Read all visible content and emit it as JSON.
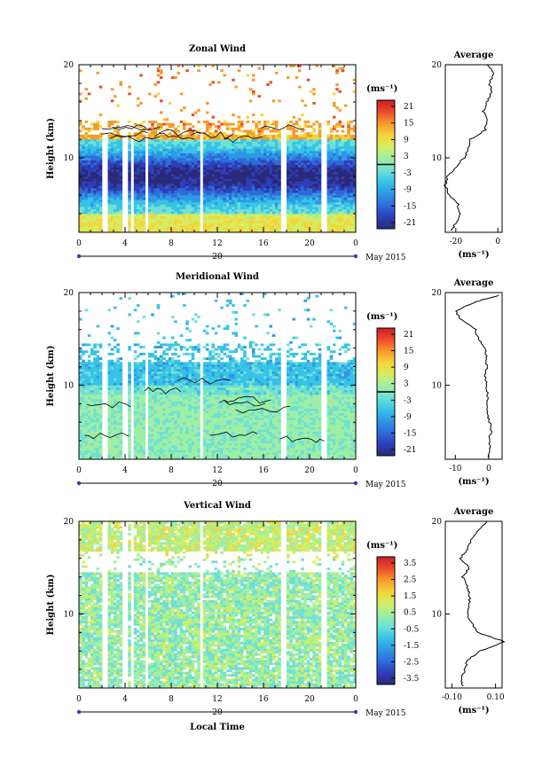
{
  "panels": [
    {
      "title": "Zonal Wind",
      "ylabel": "Height (km)",
      "y_ticks": [
        "20",
        "10"
      ],
      "x_ticks": [
        "0",
        "4",
        "8",
        "12",
        "16",
        "20",
        "0"
      ],
      "date_label": "20",
      "month_label": "May 2015",
      "cb_unit": "(ms⁻¹)",
      "cb_ticks": [
        "21",
        "15",
        "9",
        "3",
        "-3",
        "-9",
        "-15",
        "-21"
      ],
      "avg_title": "Average",
      "avg_y_ticks": [
        "20",
        "10"
      ],
      "avg_x_ticks": [
        "-20",
        "0"
      ],
      "avg_unit": "(ms⁻¹)"
    },
    {
      "title": "Meridional Wind",
      "ylabel": "Height (km)",
      "y_ticks": [
        "20",
        "10"
      ],
      "x_ticks": [
        "0",
        "4",
        "8",
        "12",
        "16",
        "20",
        "0"
      ],
      "date_label": "20",
      "month_label": "May 2015",
      "cb_unit": "(ms⁻¹)",
      "cb_ticks": [
        "21",
        "15",
        "9",
        "3",
        "-3",
        "-9",
        "-15",
        "-21"
      ],
      "avg_title": "Average",
      "avg_y_ticks": [
        "20",
        "10"
      ],
      "avg_x_ticks": [
        "-10",
        "0"
      ],
      "avg_unit": "(ms⁻¹)"
    },
    {
      "title": "Vertical Wind",
      "ylabel": "Height (km)",
      "y_ticks": [
        "20",
        "10"
      ],
      "x_ticks": [
        "0",
        "4",
        "8",
        "12",
        "16",
        "20",
        "0"
      ],
      "date_label": "20",
      "month_label": "May 2015",
      "cb_unit": "(ms⁻¹)",
      "cb_ticks": [
        "3.5",
        "2.5",
        "1.5",
        "0.5",
        "-0.5",
        "-1.5",
        "-2.5",
        "-3.5"
      ],
      "avg_title": "Average",
      "avg_y_ticks": [
        "20",
        "10"
      ],
      "avg_x_ticks": [
        "-0.10",
        "0.10"
      ],
      "avg_unit": "(ms⁻¹)"
    }
  ],
  "xlabel": "Local Time",
  "colorscale": [
    "#2b2a7a",
    "#2c3fb8",
    "#2f6bd9",
    "#2e98e6",
    "#37c3e8",
    "#6fe0d4",
    "#9eeea4",
    "#d2ee63",
    "#f6d438",
    "#f79a2c",
    "#ee4b2b",
    "#c81d27"
  ],
  "chart_data": [
    {
      "type": "heatmap",
      "title": "Zonal Wind",
      "xlabel": "",
      "ylabel": "Height (km)",
      "xlim": [
        0,
        24
      ],
      "ylim": [
        2,
        20
      ],
      "colorbar_range": [
        -24,
        24
      ],
      "colorbar_unit": "(ms⁻¹)",
      "zero_contour": true,
      "data_gaps_hours": [
        [
          2.0,
          2.4
        ],
        [
          3.8,
          4.2
        ],
        [
          4.5,
          4.8
        ],
        [
          5.7,
          6.0
        ],
        [
          10.5,
          10.8
        ],
        [
          17.5,
          17.9
        ],
        [
          21.0,
          21.6
        ]
      ],
      "profile": [
        {
          "height": 2.2,
          "value": -22
        },
        {
          "height": 3,
          "value": -20
        },
        {
          "height": 4,
          "value": -18
        },
        {
          "height": 5,
          "value": -19
        },
        {
          "height": 6,
          "value": -23
        },
        {
          "height": 7,
          "value": -25
        },
        {
          "height": 8,
          "value": -24
        },
        {
          "height": 9,
          "value": -20
        },
        {
          "height": 10,
          "value": -16
        },
        {
          "height": 11,
          "value": -14
        },
        {
          "height": 12,
          "value": -13
        },
        {
          "height": 13,
          "value": -6
        },
        {
          "height": 14,
          "value": -5
        },
        {
          "height": 15,
          "value": -7
        },
        {
          "height": 16,
          "value": -5
        },
        {
          "height": 17,
          "value": -3
        },
        {
          "height": 18,
          "value": -4
        },
        {
          "height": 19,
          "value": -2
        },
        {
          "height": 20,
          "value": -5
        }
      ],
      "profile_xlim": [
        -25,
        2
      ]
    },
    {
      "type": "heatmap",
      "title": "Meridional Wind",
      "xlabel": "",
      "ylabel": "Height (km)",
      "xlim": [
        0,
        24
      ],
      "ylim": [
        2,
        20
      ],
      "colorbar_range": [
        -24,
        24
      ],
      "colorbar_unit": "(ms⁻¹)",
      "zero_contour": true,
      "data_gaps_hours": [
        [
          2.0,
          2.4
        ],
        [
          3.8,
          4.2
        ],
        [
          4.5,
          4.8
        ],
        [
          5.7,
          6.0
        ],
        [
          10.5,
          10.8
        ],
        [
          17.5,
          17.9
        ],
        [
          21.0,
          21.6
        ]
      ],
      "profile": [
        {
          "height": 2.2,
          "value": 0
        },
        {
          "height": 3,
          "value": 0.5
        },
        {
          "height": 4,
          "value": 0
        },
        {
          "height": 5,
          "value": 0.8
        },
        {
          "height": 6,
          "value": 0.3
        },
        {
          "height": 7,
          "value": -0.5
        },
        {
          "height": 8,
          "value": -0.7
        },
        {
          "height": 9,
          "value": -0.2
        },
        {
          "height": 10,
          "value": -0.8
        },
        {
          "height": 11,
          "value": -1
        },
        {
          "height": 12,
          "value": -0.5
        },
        {
          "height": 13,
          "value": -0.8
        },
        {
          "height": 14,
          "value": -1
        },
        {
          "height": 15,
          "value": -3
        },
        {
          "height": 16,
          "value": -4
        },
        {
          "height": 17,
          "value": -8
        },
        {
          "height": 18,
          "value": -10
        },
        {
          "height": 19,
          "value": -4
        },
        {
          "height": 19.7,
          "value": 3
        }
      ],
      "profile_xlim": [
        -13,
        4
      ]
    },
    {
      "type": "heatmap",
      "title": "Vertical Wind",
      "xlabel": "Local Time",
      "ylabel": "Height (km)",
      "xlim": [
        0,
        24
      ],
      "ylim": [
        2,
        20
      ],
      "colorbar_range": [
        -4,
        4
      ],
      "colorbar_unit": "(ms⁻¹)",
      "zero_contour": false,
      "data_gaps_hours": [
        [
          2.0,
          2.4
        ],
        [
          3.8,
          4.2
        ],
        [
          4.5,
          4.8
        ],
        [
          5.7,
          6.0
        ],
        [
          10.5,
          10.8
        ],
        [
          17.5,
          17.9
        ],
        [
          21.0,
          21.6
        ]
      ],
      "profile": [
        {
          "height": 2.2,
          "value": -0.05
        },
        {
          "height": 3,
          "value": -0.06
        },
        {
          "height": 4,
          "value": -0.04
        },
        {
          "height": 5,
          "value": -0.03
        },
        {
          "height": 6,
          "value": 0.03
        },
        {
          "height": 7,
          "value": 0.14
        },
        {
          "height": 8,
          "value": 0.02
        },
        {
          "height": 9,
          "value": -0.01
        },
        {
          "height": 10,
          "value": -0.03
        },
        {
          "height": 11,
          "value": -0.02
        },
        {
          "height": 12,
          "value": -0.02
        },
        {
          "height": 13,
          "value": -0.03
        },
        {
          "height": 14,
          "value": -0.05
        },
        {
          "height": 15,
          "value": -0.02
        },
        {
          "height": 16,
          "value": -0.06
        },
        {
          "height": 17,
          "value": -0.03
        },
        {
          "height": 18,
          "value": -0.01
        },
        {
          "height": 19,
          "value": 0.02
        },
        {
          "height": 20,
          "value": 0.06
        }
      ],
      "profile_xlim": [
        -0.13,
        0.13
      ]
    }
  ]
}
